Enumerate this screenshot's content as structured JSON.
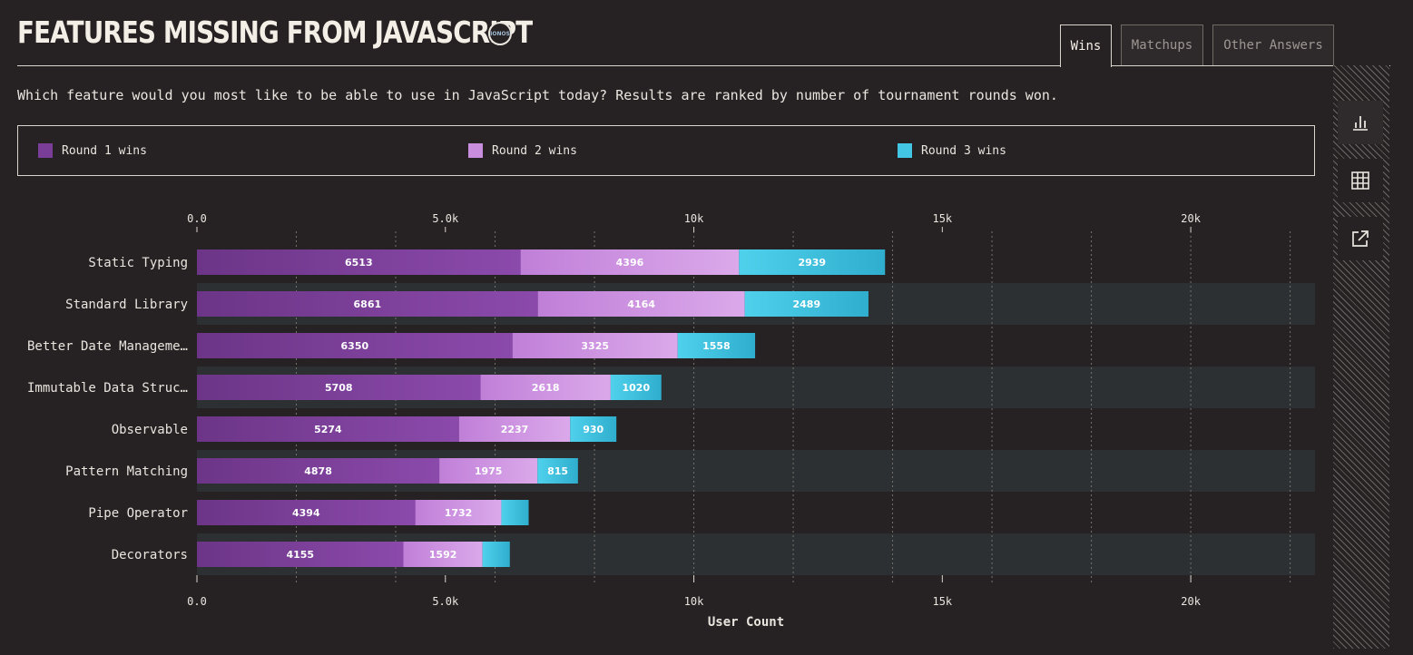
{
  "header": {
    "title": "FEATURES MISSING FROM JAVASCRIPT",
    "sponsor": "IONOS",
    "subtitle": "Which feature would you most like to be able to use in JavaScript today? Results are ranked by number of tournament rounds won."
  },
  "tabs": [
    {
      "label": "Wins",
      "active": true
    },
    {
      "label": "Matchups",
      "active": false
    },
    {
      "label": "Other Answers",
      "active": false
    }
  ],
  "side_tools": [
    {
      "icon": "bar-chart-icon",
      "active": true
    },
    {
      "icon": "table-icon",
      "active": false
    },
    {
      "icon": "external-link-icon",
      "active": false
    }
  ],
  "colors": {
    "round1": "#7a3e98",
    "round2": "#c98ddd",
    "round3": "#43c6e4",
    "row_band": "#2c3032"
  },
  "chart_data": {
    "type": "bar",
    "orientation": "horizontal",
    "stacked": true,
    "categories": [
      "Static Typing",
      "Standard Library",
      "Better Date Manageme…",
      "Immutable Data Struc…",
      "Observable",
      "Pattern Matching",
      "Pipe Operator",
      "Decorators"
    ],
    "series": [
      {
        "name": "Round 1 wins",
        "values": [
          6513,
          6861,
          6350,
          5708,
          5274,
          4878,
          4394,
          4155
        ],
        "labels": [
          "6513",
          "6861",
          "6350",
          "5708",
          "5274",
          "4878",
          "4394",
          "4155"
        ]
      },
      {
        "name": "Round 2 wins",
        "values": [
          4396,
          4164,
          3325,
          2618,
          2237,
          1975,
          1732,
          1592
        ],
        "labels": [
          "4396",
          "4164",
          "3325",
          "2618",
          "2237",
          "1975",
          "1732",
          "1592"
        ]
      },
      {
        "name": "Round 3 wins",
        "values": [
          2939,
          2489,
          1558,
          1020,
          930,
          815,
          550,
          550
        ],
        "labels": [
          "2939",
          "2489",
          "1558",
          "1020",
          "930",
          "815",
          "",
          ""
        ]
      }
    ],
    "xlim": [
      0,
      22500
    ],
    "xticks": [
      0,
      5000,
      10000,
      15000,
      20000
    ],
    "xtick_labels": [
      "0.0",
      "5.0k",
      "10k",
      "15k",
      "20k"
    ],
    "xlabel": "User Count",
    "grid": true,
    "legend_position": "top"
  }
}
